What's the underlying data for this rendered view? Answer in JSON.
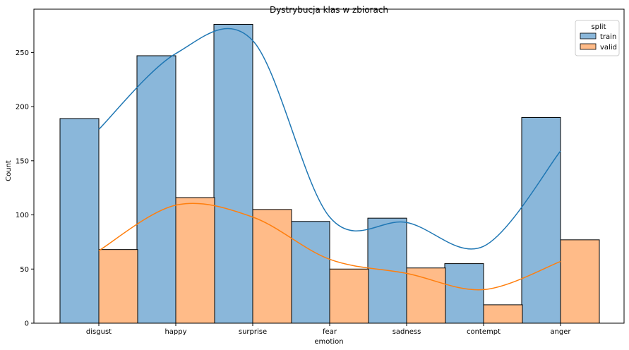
{
  "chart_data": {
    "type": "bar",
    "title": "Dystrybucja klas w zbiorach",
    "xlabel": "emotion",
    "ylabel": "Count",
    "categories": [
      "disgust",
      "happy",
      "surprise",
      "fear",
      "sadness",
      "contempt",
      "anger"
    ],
    "ylim": [
      0,
      290
    ],
    "yticks": [
      0,
      50,
      100,
      150,
      200,
      250
    ],
    "grid": false,
    "legend": {
      "title": "split",
      "placement": "top-right"
    },
    "series": [
      {
        "name": "train",
        "values": [
          189,
          247,
          276,
          94,
          97,
          55,
          190
        ],
        "fill": "#8ab7da",
        "kde_line": "#1f77b4",
        "kde": [
          179,
          249,
          261,
          98,
          93,
          71,
          159
        ]
      },
      {
        "name": "valid",
        "values": [
          68,
          116,
          105,
          50,
          51,
          17,
          77
        ],
        "fill": "#ffbb88",
        "kde_line": "#ff7f0e",
        "kde": [
          67,
          109,
          98,
          59,
          46,
          31,
          57
        ]
      }
    ],
    "bar_edge_color": "#000000"
  }
}
